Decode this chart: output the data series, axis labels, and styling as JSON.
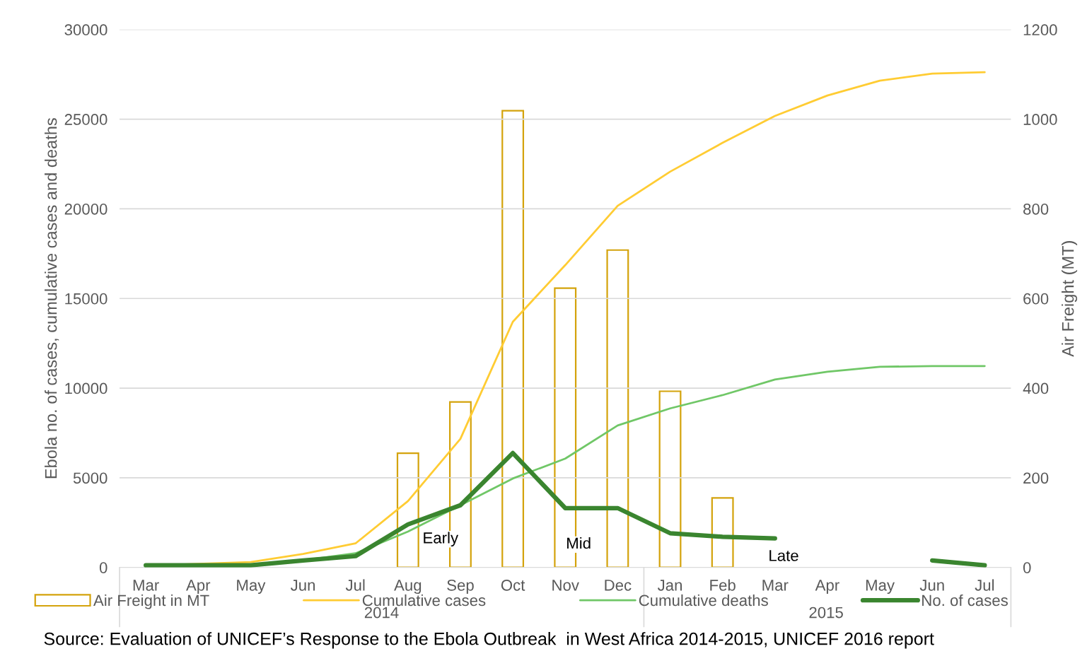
{
  "chart_data": {
    "type": "line",
    "categories": [
      "Mar",
      "Apr",
      "May",
      "Jun",
      "Jul",
      "Aug",
      "Sep",
      "Oct",
      "Nov",
      "Dec",
      "Jan",
      "Feb",
      "Mar",
      "Apr",
      "May",
      "Jun",
      "Jul"
    ],
    "ylabel": "Ebola no. of cases, cumulative cases and deaths",
    "y2label": "Air Freight (MT)",
    "ylim": [
      0,
      30000
    ],
    "yticks": [
      0,
      5000,
      10000,
      15000,
      20000,
      25000,
      30000
    ],
    "y2lim": [
      0,
      1200
    ],
    "y2ticks": [
      0,
      200,
      400,
      600,
      800,
      1000,
      1200
    ],
    "grid": "y",
    "legend": "bottom",
    "series": [
      {
        "name": "Air Freight in MT",
        "type": "bar",
        "axis": "y2",
        "color": "#d4a30c",
        "values": [
          null,
          null,
          null,
          null,
          null,
          255,
          369,
          1019,
          623,
          708,
          393,
          155,
          null,
          null,
          null,
          null,
          null
        ]
      },
      {
        "name": "Cumulative cases",
        "color": "#ffcc33",
        "values": [
          100,
          200,
          300,
          750,
          1340,
          3700,
          7170,
          13700,
          16860,
          20170,
          22070,
          23680,
          25180,
          26320,
          27150,
          27540,
          27620
        ]
      },
      {
        "name": "Cumulative deaths",
        "color": "#70c767",
        "values": [
          100,
          100,
          100,
          400,
          790,
          2000,
          3470,
          4960,
          6070,
          7920,
          8870,
          9610,
          10480,
          10910,
          11190,
          11230,
          11230
        ]
      },
      {
        "name": "No. of cases",
        "color": "#3a852f",
        "values": [
          120,
          120,
          120,
          390,
          630,
          2400,
          3470,
          6380,
          3310,
          3310,
          1910,
          1710,
          1620,
          null,
          null,
          390,
          120
        ]
      }
    ],
    "annotations": [
      "Early",
      "Mid",
      "Late",
      "2014",
      "2015",
      "Source: Evaluation of UNICEF’s Response to the Ebola Outbreak  in West Africa 2014-2015, UNICEF 2016 report"
    ]
  }
}
